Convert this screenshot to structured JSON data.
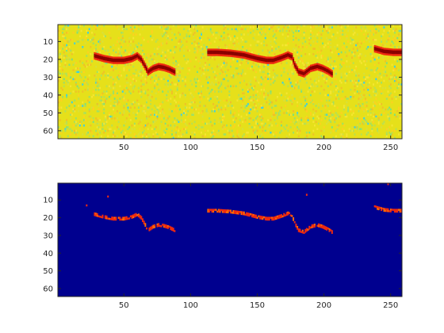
{
  "chart_data": [
    {
      "type": "heatmap",
      "title": "",
      "xlabel": "",
      "ylabel": "",
      "xlim": [
        0.5,
        258.5
      ],
      "ylim": [
        64.5,
        0.5
      ],
      "y_direction": "reversed",
      "x_ticks": [
        50,
        100,
        150,
        200,
        250
      ],
      "y_ticks": [
        10,
        20,
        30,
        40,
        50,
        60
      ],
      "x_tick_labels": [
        "50",
        "100",
        "150",
        "200",
        "250"
      ],
      "y_tick_labels": [
        "10",
        "20",
        "30",
        "40",
        "50",
        "60"
      ],
      "colormap": "jet",
      "background": "noisy high values (yellow-green), scattered cyan/blue specks",
      "colors": {
        "background": "#e6e01a",
        "noise_low": "#7fe07a",
        "noise_speck": "#3fd0e0",
        "track_outer": "#ee2a10",
        "track_core": "#8a0000"
      },
      "tracks": [
        {
          "x": [
            28,
            35,
            42,
            50,
            56,
            60,
            63,
            66,
            68,
            72,
            76,
            80,
            84,
            88
          ],
          "y": [
            18,
            19.5,
            20.5,
            20.5,
            19.5,
            18,
            20,
            24,
            27,
            25,
            24,
            24.5,
            25.5,
            27
          ]
        },
        {
          "x": [
            113,
            120,
            130,
            140,
            150,
            157,
            162,
            168,
            173,
            176,
            178,
            181,
            185,
            190,
            195,
            199,
            203,
            206
          ],
          "y": [
            16,
            16,
            16.5,
            17.5,
            19.5,
            20.5,
            20.5,
            19,
            17.5,
            18.5,
            23,
            27,
            28,
            25,
            24,
            25,
            26.5,
            28
          ]
        },
        {
          "x": [
            238,
            245,
            252,
            258
          ],
          "y": [
            14,
            15.5,
            16,
            16
          ]
        }
      ]
    },
    {
      "type": "heatmap",
      "title": "",
      "xlabel": "",
      "ylabel": "",
      "xlim": [
        0.5,
        258.5
      ],
      "ylim": [
        64.5,
        0.5
      ],
      "y_direction": "reversed",
      "x_ticks": [
        50,
        100,
        150,
        200,
        250
      ],
      "y_ticks": [
        10,
        20,
        30,
        40,
        50,
        60
      ],
      "x_tick_labels": [
        "50",
        "100",
        "150",
        "200",
        "250"
      ],
      "y_tick_labels": [
        "10",
        "20",
        "30",
        "40",
        "50",
        "60"
      ],
      "colormap": "jet",
      "background": "zero (dark blue)",
      "colors": {
        "background": "#00008f",
        "detection": "#ee2a10",
        "detection_strong": "#ff6a00"
      },
      "tracks": [
        {
          "x": [
            28,
            35,
            42,
            50,
            56,
            60,
            63,
            66,
            68,
            72,
            76,
            80,
            84,
            88
          ],
          "y": [
            18,
            19.5,
            20.5,
            20.5,
            19.5,
            18,
            20,
            24,
            27,
            25,
            24,
            24.5,
            25.5,
            27
          ]
        },
        {
          "x": [
            113,
            120,
            130,
            140,
            150,
            157,
            162,
            168,
            173,
            176,
            178,
            181,
            185,
            190,
            195,
            199,
            203,
            206
          ],
          "y": [
            16,
            16,
            16.5,
            17.5,
            19.5,
            20.5,
            20.5,
            19,
            17.5,
            18.5,
            23,
            27,
            28,
            25,
            24,
            25,
            26.5,
            28
          ]
        },
        {
          "x": [
            238,
            245,
            252,
            258
          ],
          "y": [
            14,
            15.5,
            16,
            16
          ]
        }
      ],
      "isolated_points": [
        {
          "x": 38,
          "y": 8
        },
        {
          "x": 22,
          "y": 13
        },
        {
          "x": 187,
          "y": 7
        },
        {
          "x": 248,
          "y": 1
        }
      ]
    }
  ]
}
